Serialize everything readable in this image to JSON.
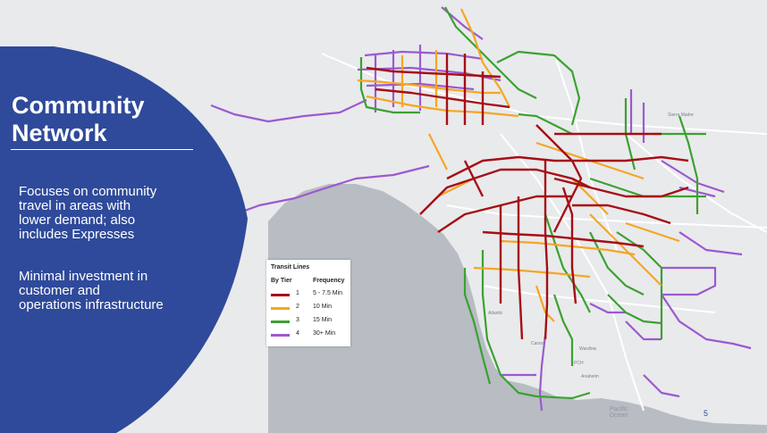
{
  "slide": {
    "title_line1": "Community",
    "title_line2": "Network",
    "bullet1_line1": "Focuses on community",
    "bullet1_line2": "travel in areas with",
    "bullet1_line3": "lower demand; also",
    "bullet1_line4": "includes Expresses",
    "bullet2_line1": "Minimal investment in",
    "bullet2_line2": "customer and",
    "bullet2_line3": "operations infrastructure",
    "page_number": "5"
  },
  "legend": {
    "title": "Transit Lines",
    "col1_header": "By Tier",
    "col2_header": "Frequency",
    "rows": [
      {
        "tier": "1",
        "frequency": "5 - 7.5 Min",
        "color": "#a50f15"
      },
      {
        "tier": "2",
        "frequency": "10 Min",
        "color": "#f5a623"
      },
      {
        "tier": "3",
        "frequency": "15 Min",
        "color": "#3ca131"
      },
      {
        "tier": "4",
        "frequency": "30+ Min",
        "color": "#9b59d0"
      }
    ]
  },
  "map": {
    "ocean_label_line1": "Pacific",
    "ocean_label_line2": "Ocean",
    "place_labels": [
      "Sierra Madre",
      "Atlantic",
      "Carson",
      "Wardlow",
      "PCH",
      "Anaheim"
    ],
    "colors": {
      "panel_blue": "#2f4a9a",
      "land": "#e9eaec",
      "water": "#b8bcc3",
      "road": "#ffffff"
    }
  }
}
